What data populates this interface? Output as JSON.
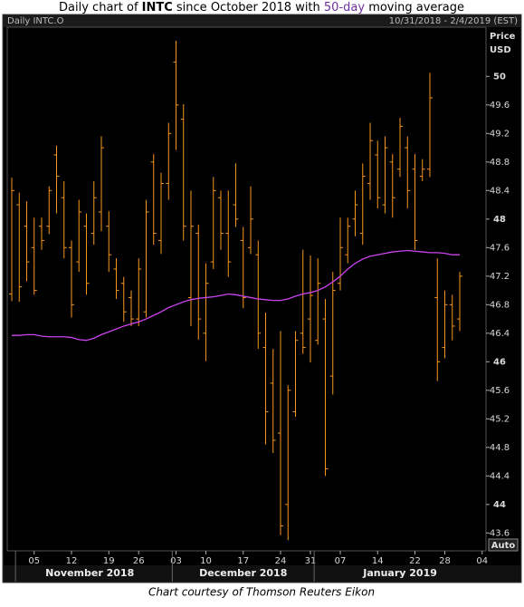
{
  "chart_data": {
    "type": "ohlc",
    "title": [
      {
        "text": "Daily chart of "
      },
      {
        "text": "INTC",
        "bold": true
      },
      {
        "text": " since October 2018 with "
      },
      {
        "text": "50-day",
        "color": "#7030a0"
      },
      {
        "text": " moving average"
      }
    ],
    "instrument": "Daily INTC.O",
    "range": "10/31/2018 - 2/4/2019 (EST)",
    "y_axis_label": [
      "Price",
      "USD"
    ],
    "scale_button": "Auto",
    "caption": "Chart courtesy of Thomson Reuters Eikon",
    "categories": [
      "2018-10-31",
      "2018-11-01",
      "2018-11-02",
      "2018-11-05",
      "2018-11-06",
      "2018-11-07",
      "2018-11-08",
      "2018-11-09",
      "2018-11-12",
      "2018-11-13",
      "2018-11-14",
      "2018-11-15",
      "2018-11-16",
      "2018-11-19",
      "2018-11-20",
      "2018-11-21",
      "2018-11-23",
      "2018-11-26",
      "2018-11-27",
      "2018-11-28",
      "2018-11-29",
      "2018-11-30",
      "2018-12-03",
      "2018-12-04",
      "2018-12-06",
      "2018-12-07",
      "2018-12-10",
      "2018-12-11",
      "2018-12-12",
      "2018-12-13",
      "2018-12-14",
      "2018-12-17",
      "2018-12-18",
      "2018-12-19",
      "2018-12-20",
      "2018-12-21",
      "2018-12-24",
      "2018-12-26",
      "2018-12-27",
      "2018-12-28",
      "2018-12-31",
      "2019-01-02",
      "2019-01-03",
      "2019-01-04",
      "2019-01-07",
      "2019-01-08",
      "2019-01-09",
      "2019-01-10",
      "2019-01-11",
      "2019-01-14",
      "2019-01-15",
      "2019-01-16",
      "2019-01-17",
      "2019-01-18",
      "2019-01-22",
      "2019-01-23",
      "2019-01-24",
      "2019-01-25",
      "2019-01-28",
      "2019-01-29",
      "2019-01-30",
      "2019-01-31",
      "2019-02-01",
      "2019-02-04"
    ],
    "ohlc": {
      "color": "#f7961e",
      "open": [
        46.95,
        48.2,
        47.9,
        47.6,
        47.9,
        47.9,
        48.9,
        48.3,
        47.6,
        47.4,
        47.9,
        47.8,
        48.1,
        47.9,
        47.3,
        47.1,
        46.9,
        46.6,
        46.7,
        48.8,
        47.7,
        48.5,
        50.2,
        49.4,
        46.9,
        47.8,
        46.4,
        47.4,
        48.3,
        47.8,
        48.2,
        47.7,
        47.6,
        47.5,
        46.2,
        45.7,
        45.0,
        44.0,
        45.3,
        46.4,
        46.6,
        46.3,
        46.6,
        45.8,
        47.1,
        47.5,
        48.0,
        47.8,
        48.5,
        48.9,
        48.2,
        48.8,
        48.7,
        49.0,
        48.7,
        48.6,
        48.7,
        46.9,
        46.2,
        46.8,
        46.6,
        null,
        null,
        null
      ],
      "high": [
        48.58,
        48.37,
        48.25,
        48.02,
        48.02,
        48.46,
        49.03,
        48.53,
        47.7,
        48.27,
        48.08,
        48.53,
        49.16,
        48.11,
        47.45,
        47.19,
        47.0,
        47.45,
        48.27,
        48.91,
        48.65,
        49.35,
        50.5,
        49.61,
        48.4,
        47.92,
        47.38,
        48.59,
        48.4,
        48.4,
        48.78,
        47.89,
        48.46,
        47.7,
        46.69,
        46.18,
        46.43,
        45.67,
        46.43,
        47.57,
        47.49,
        47.45,
        46.88,
        47.26,
        48.02,
        48.02,
        48.4,
        48.78,
        49.35,
        49.1,
        49.16,
        48.91,
        49.42,
        49.16,
        48.91,
        48.84,
        50.05,
        47.45,
        47.0,
        46.94,
        47.26,
        null,
        null,
        null
      ],
      "low": [
        46.85,
        46.84,
        47.13,
        46.94,
        47.57,
        47.79,
        48.08,
        47.45,
        46.62,
        47.26,
        46.94,
        47.64,
        47.83,
        47.26,
        46.88,
        46.56,
        46.5,
        46.5,
        46.62,
        47.64,
        47.51,
        48.27,
        48.97,
        47.7,
        46.5,
        46.31,
        46.01,
        47.3,
        47.57,
        47.19,
        47.89,
        46.75,
        47.51,
        46.18,
        44.84,
        44.72,
        43.57,
        43.5,
        45.23,
        46.11,
        45.99,
        46.24,
        44.4,
        45.54,
        47.0,
        47.38,
        47.76,
        47.64,
        48.27,
        48.15,
        48.08,
        48.02,
        48.59,
        48.15,
        47.57,
        48.53,
        48.59,
        45.73,
        46.05,
        46.3,
        46.43,
        null,
        null,
        null
      ],
      "close": [
        48.4,
        47.05,
        47.4,
        47.0,
        47.7,
        48.4,
        48.6,
        47.6,
        46.8,
        48.1,
        47.1,
        48.3,
        49.0,
        47.5,
        47.0,
        46.7,
        46.6,
        47.3,
        48.1,
        47.8,
        48.5,
        49.2,
        49.6,
        47.9,
        47.9,
        46.6,
        47.1,
        48.4,
        47.8,
        47.4,
        48.0,
        46.9,
        48.0,
        46.4,
        45.3,
        44.9,
        43.7,
        45.6,
        46.3,
        46.2,
        46.93,
        47.1,
        44.5,
        47.0,
        47.6,
        47.9,
        48.2,
        48.6,
        49.1,
        48.3,
        49.0,
        48.3,
        49.3,
        48.4,
        47.7,
        48.7,
        49.7,
        46.0,
        46.8,
        46.5,
        47.2,
        null,
        null,
        null
      ]
    },
    "moving_average": {
      "color": "#cc44ee",
      "values": [
        46.37,
        46.37,
        46.38,
        46.38,
        46.36,
        46.35,
        46.35,
        46.35,
        46.34,
        46.31,
        46.3,
        46.33,
        46.38,
        46.42,
        46.46,
        46.5,
        46.53,
        46.56,
        46.6,
        46.65,
        46.7,
        46.76,
        46.8,
        46.84,
        46.87,
        46.89,
        46.9,
        46.91,
        46.93,
        46.95,
        46.94,
        46.92,
        46.9,
        46.88,
        46.87,
        46.86,
        46.86,
        46.88,
        46.92,
        46.95,
        46.97,
        47.0,
        47.05,
        47.12,
        47.2,
        47.3,
        47.38,
        47.44,
        47.48,
        47.5,
        47.52,
        47.54,
        47.55,
        47.56,
        47.55,
        47.54,
        47.53,
        47.53,
        47.52,
        47.5,
        47.5,
        null,
        null,
        null
      ]
    },
    "xticks": [
      {
        "value": "2018-11-05",
        "label": "05"
      },
      {
        "value": "2018-11-12",
        "label": "12"
      },
      {
        "value": "2018-11-19",
        "label": "19"
      },
      {
        "value": "2018-11-26",
        "label": "26"
      },
      {
        "value": "2018-12-03",
        "label": "03"
      },
      {
        "value": "2018-12-10",
        "label": "10"
      },
      {
        "value": "2018-12-17",
        "label": "17"
      },
      {
        "value": "2018-12-24",
        "label": "24"
      },
      {
        "value": "2018-12-31",
        "label": "31"
      },
      {
        "value": "2019-01-07",
        "label": "07"
      },
      {
        "value": "2019-01-14",
        "label": "14"
      },
      {
        "value": "2019-01-22",
        "label": "22"
      },
      {
        "value": "2019-01-28",
        "label": "28"
      },
      {
        "value": "2019-02-04",
        "label": "04"
      }
    ],
    "months": [
      {
        "value": "2018-11-01",
        "label": "November 2018"
      },
      {
        "value": "2018-12-03",
        "label": "December 2018"
      },
      {
        "value": "2019-01-02",
        "label": "January 2019"
      }
    ],
    "ylim": [
      43.35,
      50.69
    ],
    "yticks": [
      50,
      49.6,
      49.2,
      48.8,
      48.4,
      48,
      47.6,
      47.2,
      46.8,
      46.4,
      46,
      45.6,
      45.2,
      44.8,
      44.4,
      44,
      43.6
    ]
  }
}
